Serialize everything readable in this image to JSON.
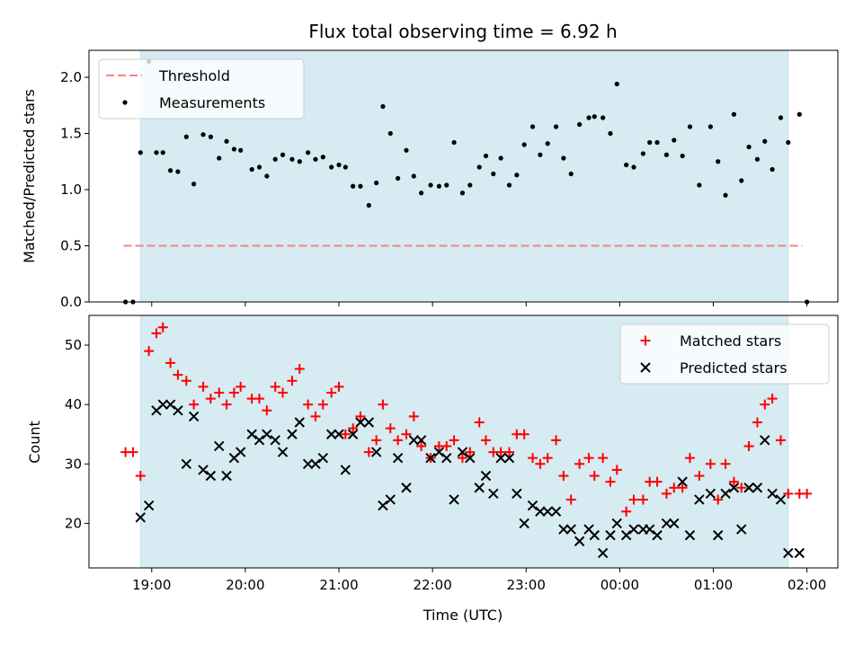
{
  "chart_data": [
    {
      "panel": "top",
      "type": "scatter",
      "title": "Flux total observing time = 6.92 h",
      "xlabel": "",
      "ylabel": "Matched/Predicted stars",
      "ylim": [
        0,
        2.24
      ],
      "yticks": [
        "0.0",
        "0.5",
        "1.0",
        "1.5",
        "2.0"
      ],
      "ytick_values": [
        0,
        0.5,
        1.0,
        1.5,
        2.0
      ],
      "threshold": {
        "name": "Threshold",
        "y": 0.5,
        "color": "#ff7f7f",
        "x_start": 18.7,
        "x_end": 25.95
      },
      "legend": {
        "placement": "upper left",
        "entries": [
          "Threshold",
          "Measurements"
        ]
      },
      "series": [
        {
          "name": "Measurements",
          "color": "#000000",
          "x": [
            18.72,
            18.8,
            18.88,
            18.97,
            19.05,
            19.12,
            19.2,
            19.28,
            19.37,
            19.45,
            19.55,
            19.63,
            19.72,
            19.8,
            19.88,
            19.95,
            20.07,
            20.15,
            20.23,
            20.32,
            20.4,
            20.5,
            20.58,
            20.67,
            20.75,
            20.83,
            20.92,
            21.0,
            21.07,
            21.15,
            21.23,
            21.32,
            21.4,
            21.47,
            21.55,
            21.63,
            21.72,
            21.8,
            21.88,
            21.98,
            22.07,
            22.15,
            22.23,
            22.32,
            22.4,
            22.5,
            22.57,
            22.65,
            22.73,
            22.82,
            22.9,
            22.98,
            23.07,
            23.15,
            23.23,
            23.32,
            23.4,
            23.48,
            23.57,
            23.67,
            23.73,
            23.82,
            23.9,
            23.97,
            24.07,
            24.15,
            24.25,
            24.32,
            24.4,
            24.5,
            24.58,
            24.67,
            24.75,
            24.85,
            24.97,
            25.05,
            25.13,
            25.22,
            25.3,
            25.38,
            25.47,
            25.55,
            25.63,
            25.72,
            25.8,
            25.92
          ],
          "y": [
            0.0,
            0.0,
            1.33,
            2.14,
            1.33,
            1.33,
            1.17,
            1.16,
            1.47,
            1.05,
            1.49,
            1.47,
            1.28,
            1.43,
            1.36,
            1.35,
            1.18,
            1.2,
            1.12,
            1.27,
            1.31,
            1.27,
            1.25,
            1.33,
            1.27,
            1.29,
            1.2,
            1.22,
            1.2,
            1.03,
            1.03,
            0.86,
            1.06,
            1.74,
            1.5,
            1.1,
            1.35,
            1.12,
            0.97,
            1.04,
            1.03,
            1.04,
            1.42,
            0.97,
            1.04,
            1.2,
            1.3,
            1.14,
            1.28,
            1.04,
            1.13,
            1.4,
            1.56,
            1.31,
            1.41,
            1.56,
            1.28,
            1.14,
            1.58,
            1.64,
            1.65,
            1.64,
            1.5,
            1.94,
            1.22,
            1.2,
            1.32,
            1.42,
            1.42,
            1.31,
            1.44,
            1.3,
            1.56,
            1.04,
            1.56,
            1.25,
            0.95,
            1.67,
            1.08,
            1.38,
            1.27,
            1.43,
            1.18,
            1.64,
            1.42,
            1.67
          ]
        },
        {
          "name": "",
          "color": "#000000",
          "x": [
            26.0
          ],
          "y": [
            0.0
          ]
        }
      ]
    },
    {
      "panel": "bottom",
      "type": "scatter",
      "title": "",
      "xlabel": "Time (UTC)",
      "ylabel": "Count",
      "ylim": [
        12.5,
        55
      ],
      "yticks": [
        "20",
        "30",
        "40",
        "50"
      ],
      "ytick_values": [
        20,
        30,
        40,
        50
      ],
      "xlim": [
        18.33,
        26.33
      ],
      "xticks": [
        "19:00",
        "20:00",
        "21:00",
        "22:00",
        "23:00",
        "00:00",
        "01:00",
        "02:00"
      ],
      "xtick_values": [
        19,
        20,
        21,
        22,
        23,
        24,
        25,
        26
      ],
      "legend": {
        "placement": "upper right",
        "entries": [
          "Matched stars",
          "Predicted stars"
        ]
      },
      "series": [
        {
          "name": "Matched stars",
          "marker": "+",
          "color": "#ff0000",
          "x": [
            18.72,
            18.8,
            18.88,
            18.97,
            19.05,
            19.12,
            19.2,
            19.28,
            19.37,
            19.45,
            19.55,
            19.63,
            19.72,
            19.8,
            19.88,
            19.95,
            20.07,
            20.15,
            20.23,
            20.32,
            20.4,
            20.5,
            20.58,
            20.67,
            20.75,
            20.83,
            20.92,
            21.0,
            21.07,
            21.15,
            21.23,
            21.32,
            21.4,
            21.47,
            21.55,
            21.63,
            21.72,
            21.8,
            21.88,
            21.98,
            22.07,
            22.15,
            22.23,
            22.32,
            22.4,
            22.5,
            22.57,
            22.65,
            22.73,
            22.82,
            22.9,
            22.98,
            23.07,
            23.15,
            23.23,
            23.32,
            23.4,
            23.48,
            23.57,
            23.67,
            23.73,
            23.82,
            23.9,
            23.97,
            24.07,
            24.15,
            24.25,
            24.32,
            24.4,
            24.5,
            24.58,
            24.67,
            24.75,
            24.85,
            24.97,
            25.05,
            25.13,
            25.22,
            25.3,
            25.38,
            25.47,
            25.55,
            25.63,
            25.72,
            25.8,
            25.92,
            26.0
          ],
          "y": [
            32,
            32,
            28,
            49,
            52,
            53,
            47,
            45,
            44,
            40,
            43,
            41,
            42,
            40,
            42,
            43,
            41,
            41,
            39,
            43,
            42,
            44,
            46,
            40,
            38,
            40,
            42,
            43,
            35,
            36,
            38,
            32,
            34,
            40,
            36,
            34,
            35,
            38,
            33,
            31,
            33,
            33,
            34,
            31,
            32,
            37,
            34,
            32,
            32,
            32,
            35,
            35,
            31,
            30,
            31,
            34,
            28,
            24,
            30,
            31,
            28,
            31,
            27,
            29,
            22,
            24,
            24,
            27,
            27,
            25,
            26,
            26,
            31,
            28,
            30,
            24,
            30,
            27,
            26,
            33,
            37,
            40,
            41,
            34,
            25,
            25,
            25
          ]
        },
        {
          "name": "Predicted stars",
          "marker": "x",
          "color": "#000000",
          "x": [
            18.88,
            18.97,
            19.05,
            19.12,
            19.2,
            19.28,
            19.37,
            19.45,
            19.55,
            19.63,
            19.72,
            19.8,
            19.88,
            19.95,
            20.07,
            20.15,
            20.23,
            20.32,
            20.4,
            20.5,
            20.58,
            20.67,
            20.75,
            20.83,
            20.92,
            21.0,
            21.07,
            21.15,
            21.23,
            21.32,
            21.4,
            21.47,
            21.55,
            21.63,
            21.72,
            21.8,
            21.88,
            21.98,
            22.07,
            22.15,
            22.23,
            22.32,
            22.4,
            22.5,
            22.57,
            22.65,
            22.73,
            22.82,
            22.9,
            22.98,
            23.07,
            23.15,
            23.23,
            23.32,
            23.4,
            23.48,
            23.57,
            23.67,
            23.73,
            23.82,
            23.9,
            23.97,
            24.07,
            24.15,
            24.25,
            24.32,
            24.4,
            24.5,
            24.58,
            24.67,
            24.75,
            24.85,
            24.97,
            25.05,
            25.13,
            25.22,
            25.3,
            25.38,
            25.47,
            25.55,
            25.63,
            25.72,
            25.8,
            25.92
          ],
          "y": [
            21,
            23,
            39,
            40,
            40,
            39,
            30,
            38,
            29,
            28,
            33,
            28,
            31,
            32,
            35,
            34,
            35,
            34,
            32,
            35,
            37,
            30,
            30,
            31,
            35,
            35,
            29,
            35,
            37,
            37,
            32,
            23,
            24,
            31,
            26,
            34,
            34,
            31,
            32,
            31,
            24,
            32,
            31,
            26,
            28,
            25,
            31,
            31,
            25,
            20,
            23,
            22,
            22,
            22,
            19,
            19,
            17,
            19,
            18,
            15,
            18,
            20,
            18,
            19,
            19,
            19,
            18,
            20,
            20,
            27,
            18,
            24,
            25,
            18,
            25,
            26,
            19,
            26,
            26,
            34,
            25,
            24,
            15,
            15
          ]
        }
      ]
    }
  ],
  "shaded_region": {
    "x_start": 18.88,
    "x_end": 25.8,
    "color": "#add8e6"
  },
  "colors": {
    "matched": "#ff0000",
    "predicted": "#000000",
    "threshold": "#ff7f7f",
    "shade": "#add8e6"
  }
}
